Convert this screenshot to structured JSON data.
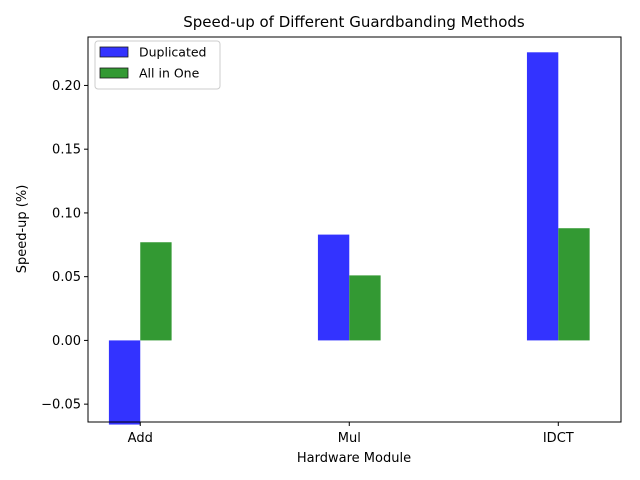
{
  "chart_data": {
    "type": "bar",
    "title": "Speed-up of Different Guardbanding Methods",
    "xlabel": "Hardware Module",
    "ylabel": "Speed-up (%)",
    "categories": [
      "Add",
      "Mul",
      "IDCT"
    ],
    "series": [
      {
        "name": "Duplicated",
        "values": [
          -0.066,
          0.083,
          0.226
        ],
        "color": "#3333ff"
      },
      {
        "name": "All in One",
        "values": [
          0.077,
          0.051,
          0.088
        ],
        "color": "#339933"
      }
    ],
    "ylim": [
      -0.064,
      0.238
    ],
    "yticks": [
      -0.05,
      0.0,
      0.05,
      0.1,
      0.15,
      0.2
    ],
    "ytick_labels": [
      "−0.05",
      "0.00",
      "0.05",
      "0.10",
      "0.15",
      "0.20"
    ],
    "legend_position": "upper-left",
    "grid": false
  }
}
